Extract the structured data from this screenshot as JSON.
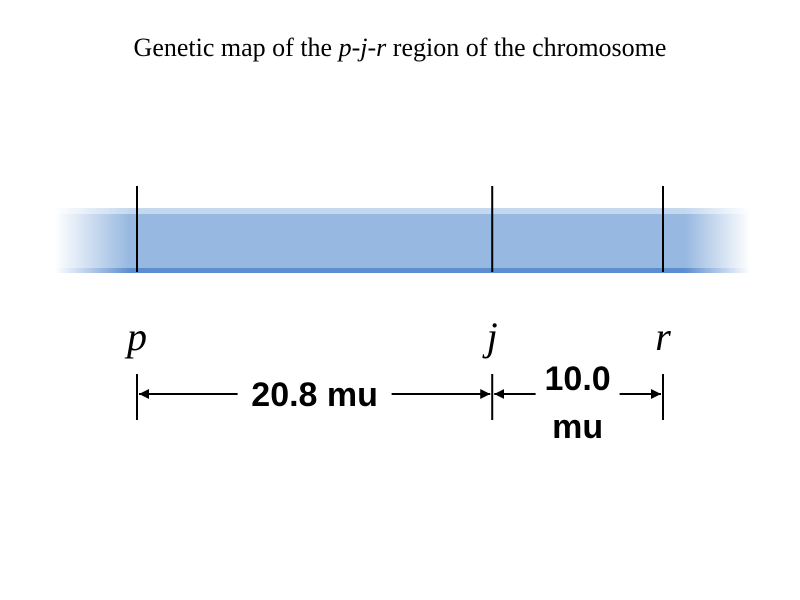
{
  "title": {
    "prefix": "Genetic map of the ",
    "locus_1": "p",
    "sep_1": "-",
    "locus_2": "j",
    "sep_2": "-",
    "locus_3": "r",
    "suffix": " region of the chromosome"
  },
  "colors": {
    "chromosome_fill": "#97b8e0",
    "chromosome_edge_top": "#c4d8ee",
    "chromosome_edge_bottom": "#5d8fd0",
    "marker_line": "#000000"
  },
  "loci": [
    {
      "name": "p",
      "position_mu": 0.0
    },
    {
      "name": "j",
      "position_mu": 20.8
    },
    {
      "name": "r",
      "position_mu": 30.8
    }
  ],
  "distances": [
    {
      "from": "p",
      "to": "j",
      "value": "20.8 mu",
      "line_1": "20.8 mu"
    },
    {
      "from": "j",
      "to": "r",
      "value": "10.0 mu",
      "line_1": "10.0",
      "line_2": "mu"
    }
  ]
}
